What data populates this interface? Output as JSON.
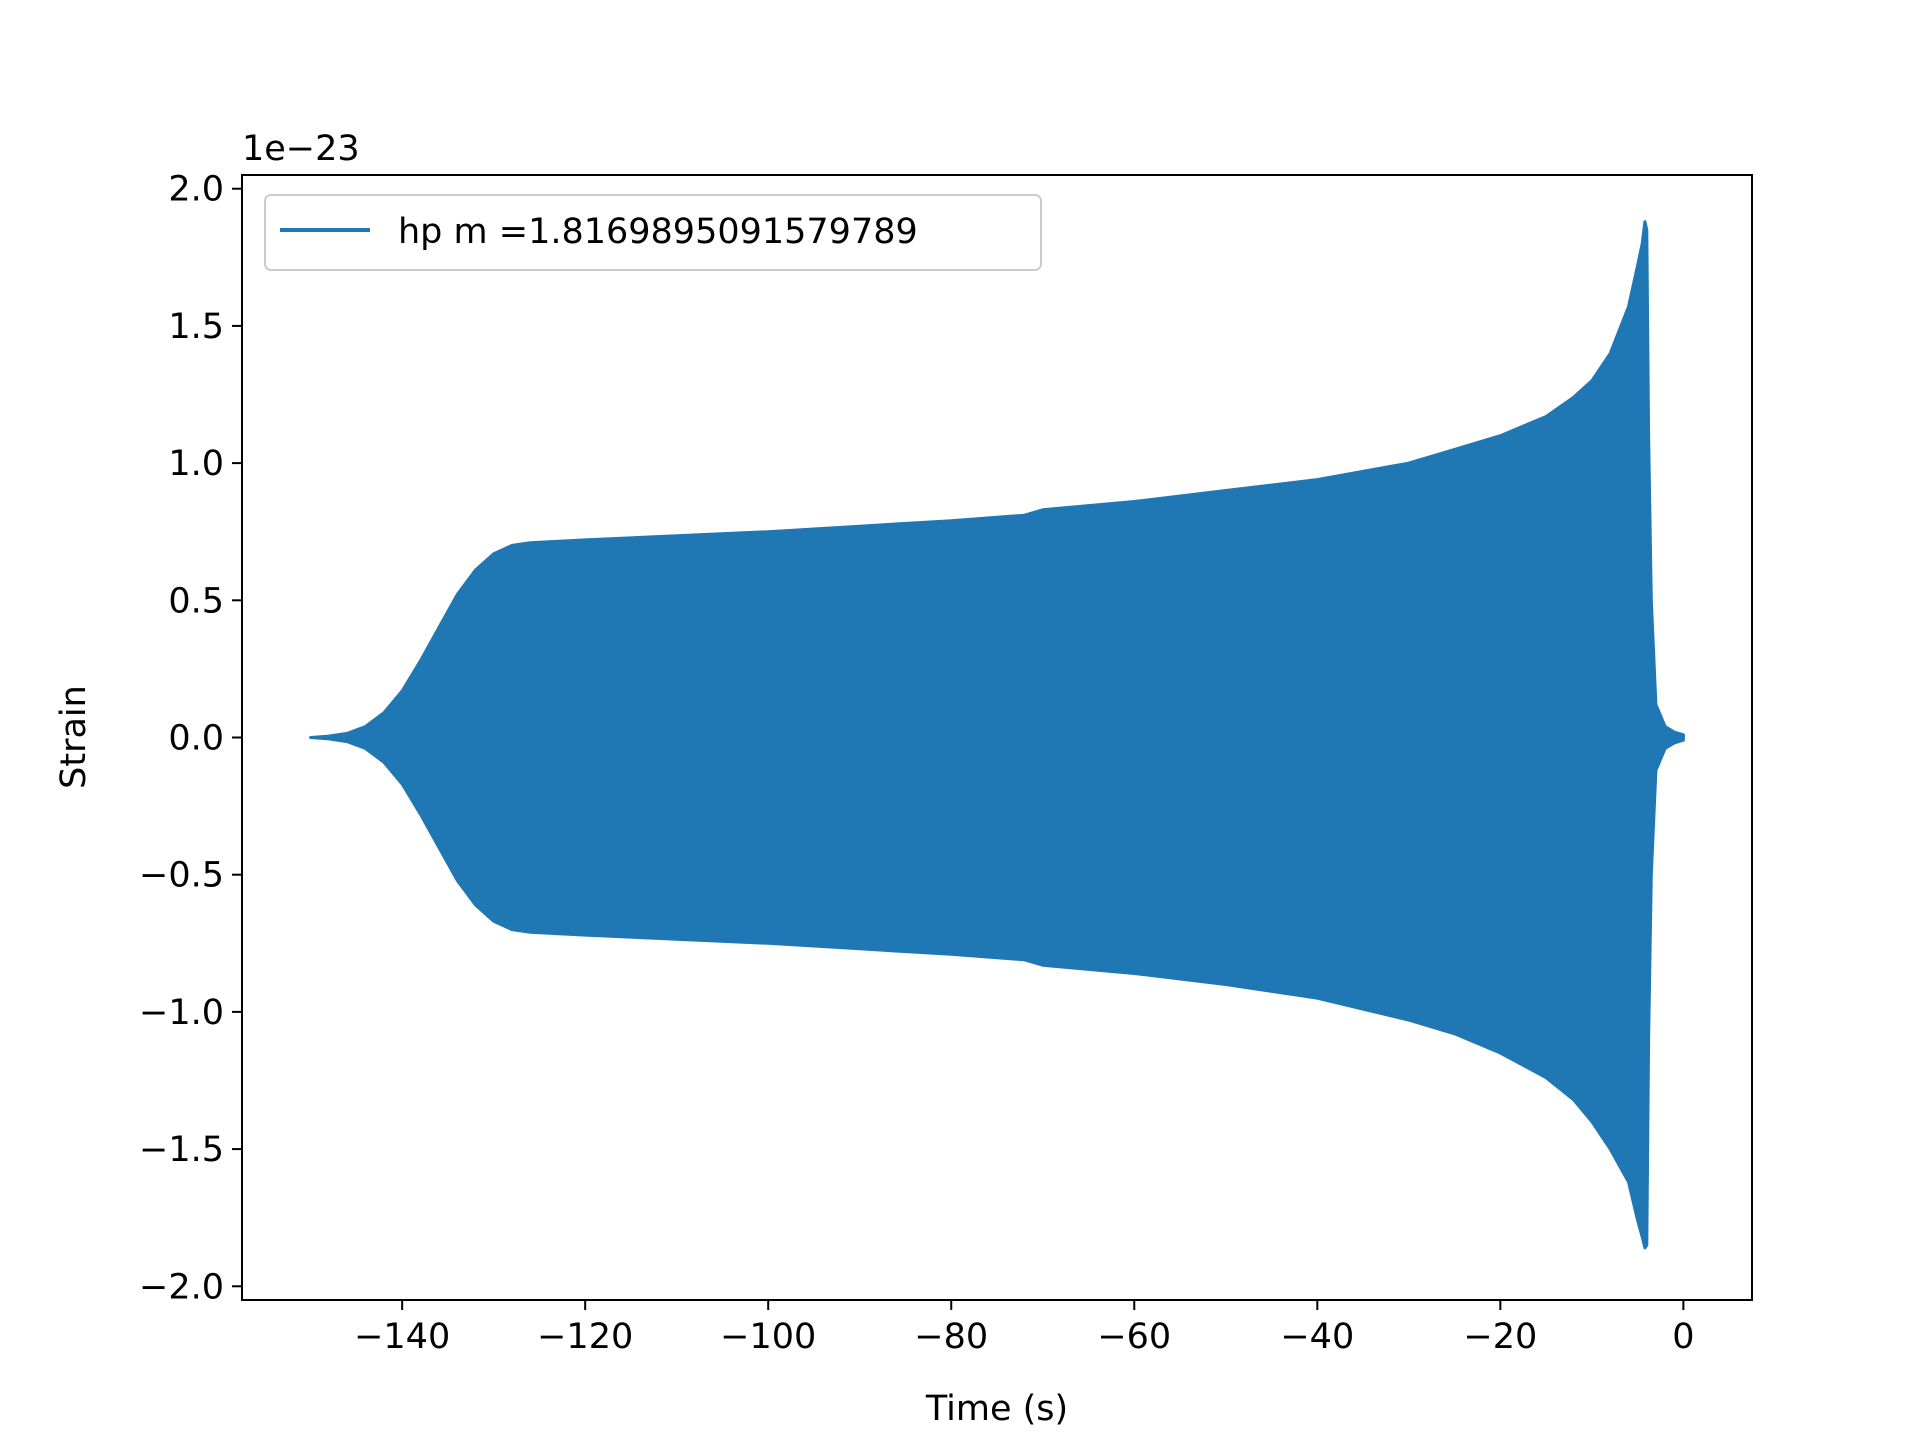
{
  "chart_data": {
    "type": "line",
    "title": "",
    "xlabel": "Time (s)",
    "ylabel": "Strain",
    "y_scale_label": "1e−23",
    "xlim": [
      -157.5,
      7.5
    ],
    "ylim": [
      -2.05,
      2.05
    ],
    "x_ticks": [
      -140,
      -120,
      -100,
      -80,
      -60,
      -40,
      -20,
      0
    ],
    "x_tick_labels": [
      "−140",
      "−120",
      "−100",
      "−80",
      "−60",
      "−40",
      "−20",
      "0"
    ],
    "y_ticks": [
      -2.0,
      -1.5,
      -1.0,
      -0.5,
      0.0,
      0.5,
      1.0,
      1.5,
      2.0
    ],
    "y_tick_labels": [
      "−2.0",
      "−1.5",
      "−1.0",
      "−0.5",
      "0.0",
      "0.5",
      "1.0",
      "1.5",
      "2.0"
    ],
    "grid": false,
    "legend_position": "top-left",
    "series": [
      {
        "name": "hp m =1.8169895091579789",
        "color": "#1f77b4",
        "style": "rapid oscillation; envelope values in units of 1e-23",
        "envelope_x": [
          -150,
          -148,
          -146,
          -144,
          -142,
          -140,
          -138,
          -136,
          -134,
          -132,
          -130,
          -128,
          -126,
          -120,
          -110,
          -100,
          -90,
          -80,
          -72,
          -70,
          -60,
          -50,
          -40,
          -30,
          -25,
          -20,
          -15,
          -12,
          -10,
          -8,
          -6,
          -5,
          -4.5,
          -4.2,
          -4,
          -3.8,
          -3.5,
          -3,
          -2,
          -1,
          0
        ],
        "envelope_upper": [
          0.0,
          0.005,
          0.015,
          0.04,
          0.09,
          0.17,
          0.28,
          0.4,
          0.52,
          0.61,
          0.67,
          0.7,
          0.71,
          0.72,
          0.735,
          0.75,
          0.77,
          0.79,
          0.81,
          0.83,
          0.86,
          0.9,
          0.94,
          1.0,
          1.05,
          1.1,
          1.17,
          1.24,
          1.3,
          1.4,
          1.57,
          1.72,
          1.8,
          1.88,
          1.85,
          1.1,
          0.5,
          0.12,
          0.04,
          0.02,
          0.01
        ],
        "envelope_lower": [
          0.0,
          -0.005,
          -0.015,
          -0.04,
          -0.09,
          -0.17,
          -0.28,
          -0.4,
          -0.52,
          -0.61,
          -0.67,
          -0.7,
          -0.71,
          -0.72,
          -0.735,
          -0.75,
          -0.77,
          -0.79,
          -0.81,
          -0.83,
          -0.86,
          -0.9,
          -0.95,
          -1.03,
          -1.08,
          -1.15,
          -1.24,
          -1.32,
          -1.4,
          -1.5,
          -1.62,
          -1.76,
          -1.82,
          -1.86,
          -1.85,
          -1.1,
          -0.5,
          -0.12,
          -0.04,
          -0.02,
          -0.01
        ]
      }
    ]
  }
}
